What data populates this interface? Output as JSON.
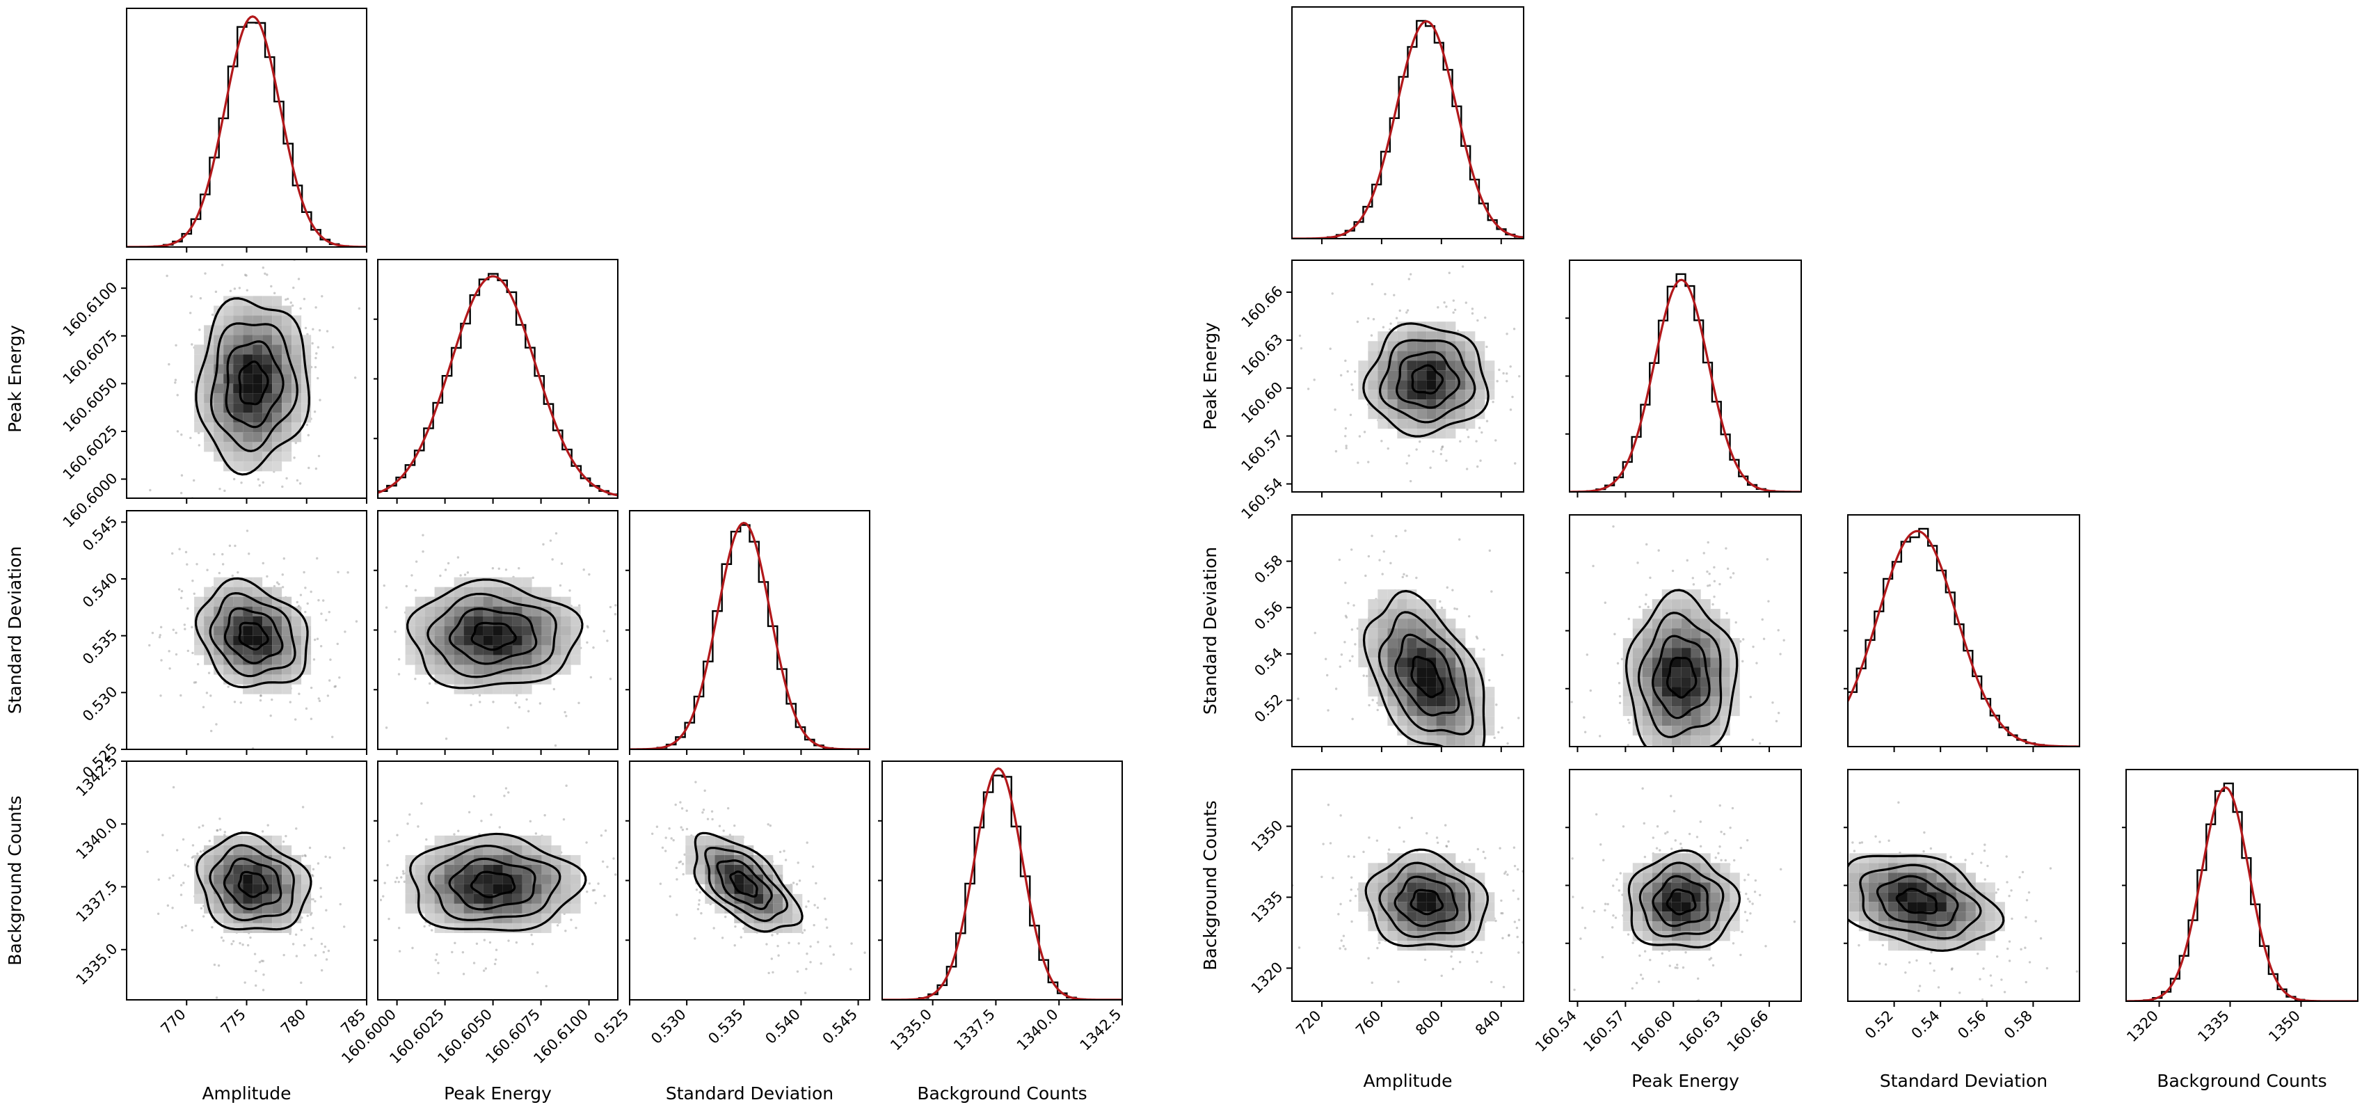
{
  "chart_data": [
    {
      "type": "corner",
      "name": "left corner plot",
      "parameters": [
        "Amplitude",
        "Peak Energy",
        "Standard Deviation",
        "Background Counts"
      ],
      "marginal_histograms": [
        {
          "parameter": "Amplitude",
          "mean": 775.5,
          "sd": 2.3,
          "range": [
            765.0,
            785.0
          ],
          "fit": "gaussian"
        },
        {
          "parameter": "Peak Energy",
          "mean": 160.605,
          "sd": 0.0022,
          "range": [
            160.599,
            160.6115
          ],
          "fit": "gaussian"
        },
        {
          "parameter": "Standard Deviation",
          "mean": 0.535,
          "sd": 0.0023,
          "range": [
            0.525,
            0.546
          ],
          "fit": "gaussian"
        },
        {
          "parameter": "Background Counts",
          "mean": 1337.6,
          "sd": 0.95,
          "range": [
            1333.0,
            1342.5
          ],
          "fit": "gaussian"
        }
      ],
      "correlations": [
        {
          "x": "Amplitude",
          "y": "Peak Energy",
          "rho": 0.05
        },
        {
          "x": "Amplitude",
          "y": "Standard Deviation",
          "rho": -0.2
        },
        {
          "x": "Peak Energy",
          "y": "Standard Deviation",
          "rho": 0.0
        },
        {
          "x": "Amplitude",
          "y": "Background Counts",
          "rho": -0.15
        },
        {
          "x": "Peak Energy",
          "y": "Background Counts",
          "rho": 0.0
        },
        {
          "x": "Standard Deviation",
          "y": "Background Counts",
          "rho": -0.6
        }
      ],
      "x_ticks": [
        [
          "770",
          "775",
          "780",
          "785"
        ],
        [
          "160.6000",
          "160.6025",
          "160.6050",
          "160.6075",
          "160.6100"
        ],
        [
          "0.525",
          "0.530",
          "0.535",
          "0.540",
          "0.545"
        ],
        [
          "1335.0",
          "1337.5",
          "1340.0",
          "1342.5"
        ]
      ],
      "y_ticks": [
        [],
        [
          "160.6000",
          "160.6025",
          "160.6050",
          "160.6075",
          "160.6100"
        ],
        [
          "0.525",
          "0.530",
          "0.535",
          "0.540",
          "0.545"
        ],
        [
          "1335.0",
          "1337.5",
          "1340.0",
          "1342.5"
        ]
      ],
      "xlabels": [
        "Amplitude",
        "Peak Energy",
        "Standard Deviation",
        "Background Counts"
      ],
      "ylabels": [
        "",
        "Peak Energy",
        "Standard Deviation",
        "Background Counts"
      ]
    },
    {
      "type": "corner",
      "name": "right corner plot",
      "parameters": [
        "Amplitude",
        "Peak Energy",
        "Standard Deviation",
        "Background Counts"
      ],
      "marginal_histograms": [
        {
          "parameter": "Amplitude",
          "mean": 790.0,
          "sd": 20.0,
          "range": [
            700.0,
            855.0
          ],
          "fit": "gaussian"
        },
        {
          "parameter": "Peak Energy",
          "mean": 160.605,
          "sd": 0.017,
          "range": [
            160.535,
            160.68
          ],
          "fit": "gaussian"
        },
        {
          "parameter": "Standard Deviation",
          "mean": 0.53,
          "sd": 0.017,
          "range": [
            0.5,
            0.6
          ],
          "fit": "gaussian"
        },
        {
          "parameter": "Background Counts",
          "mean": 1334.0,
          "sd": 5.0,
          "range": [
            1313.0,
            1362.0
          ],
          "fit": "gaussian"
        }
      ],
      "correlations": [
        {
          "x": "Amplitude",
          "y": "Peak Energy",
          "rho": 0.0
        },
        {
          "x": "Amplitude",
          "y": "Standard Deviation",
          "rho": -0.45
        },
        {
          "x": "Peak Energy",
          "y": "Standard Deviation",
          "rho": 0.0
        },
        {
          "x": "Amplitude",
          "y": "Background Counts",
          "rho": -0.1
        },
        {
          "x": "Peak Energy",
          "y": "Background Counts",
          "rho": 0.0
        },
        {
          "x": "Standard Deviation",
          "y": "Background Counts",
          "rho": -0.3
        }
      ],
      "x_ticks": [
        [
          "720",
          "760",
          "800",
          "840"
        ],
        [
          "160.54",
          "160.57",
          "160.60",
          "160.63",
          "160.66"
        ],
        [
          "0.52",
          "0.54",
          "0.56",
          "0.58"
        ],
        [
          "1320",
          "1335",
          "1350"
        ]
      ],
      "y_ticks": [
        [],
        [
          "160.54",
          "160.57",
          "160.60",
          "160.63",
          "160.66"
        ],
        [
          "0.52",
          "0.54",
          "0.56",
          "0.58"
        ],
        [
          "1320",
          "1335",
          "1350"
        ]
      ],
      "xlabels": [
        "Amplitude",
        "Peak Energy",
        "Standard Deviation",
        "Background Counts"
      ],
      "ylabels": [
        "",
        "Peak Energy",
        "Standard Deviation",
        "Background Counts"
      ]
    }
  ]
}
